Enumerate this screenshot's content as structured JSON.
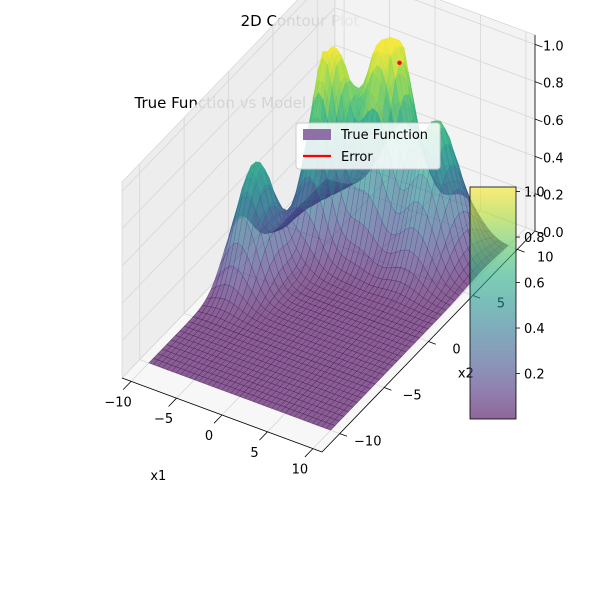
{
  "figure_title": "2D Contour Plot",
  "chart_data": {
    "type": "surface3d",
    "title": "True Function vs Model Prediction",
    "xlabel": "x1",
    "ylabel": "x2",
    "zlabel": "",
    "xlim": [
      -11,
      11
    ],
    "ylim": [
      -12,
      12
    ],
    "zlim": [
      0,
      1.05
    ],
    "x_ticks": [
      -10,
      -5,
      0,
      5,
      10
    ],
    "y_ticks": [
      -10,
      -5,
      0,
      5,
      10
    ],
    "z_ticks": [
      0.0,
      0.2,
      0.4,
      0.6,
      0.8,
      1.0
    ],
    "x_tick_labels": [
      "−10",
      "−5",
      "0",
      "5",
      "10"
    ],
    "y_tick_labels": [
      "−10",
      "−5",
      "0",
      "5",
      "10"
    ],
    "z_tick_labels": [
      "0.0",
      "0.2",
      "0.4",
      "0.6",
      "0.8",
      "1.0"
    ],
    "grid": true,
    "legend_position": "upper-right",
    "legend": [
      {
        "label": "True Function",
        "kind": "patch",
        "color": "#8e70a6"
      },
      {
        "label": "Error",
        "kind": "line",
        "color": "#ff0000"
      }
    ],
    "colormap": "viridis",
    "surface_alpha": 0.6,
    "peaks": [
      {
        "x1": -8,
        "x2": 0,
        "height": 0.62,
        "width": 1.6
      },
      {
        "x1": -5,
        "x2": 5,
        "height": 1.0,
        "width": 1.5
      },
      {
        "x1": 0,
        "x2": 7,
        "height": 0.86,
        "width": 1.6
      },
      {
        "x1": 5,
        "x2": 7,
        "height": 0.72,
        "width": 1.8
      },
      {
        "x1": -2,
        "x2": 8,
        "height": 0.55,
        "width": 2.2
      }
    ],
    "error_marker": {
      "x1": 0,
      "x2": 8,
      "z": 0.9,
      "color": "#ff0000"
    },
    "colorbar": {
      "ticks": [
        0.2,
        0.4,
        0.6,
        0.8,
        1.0
      ],
      "tick_labels": [
        "0.2",
        "0.4",
        "0.6",
        "0.8",
        "1.0"
      ],
      "range": [
        0.0,
        1.02
      ]
    }
  }
}
